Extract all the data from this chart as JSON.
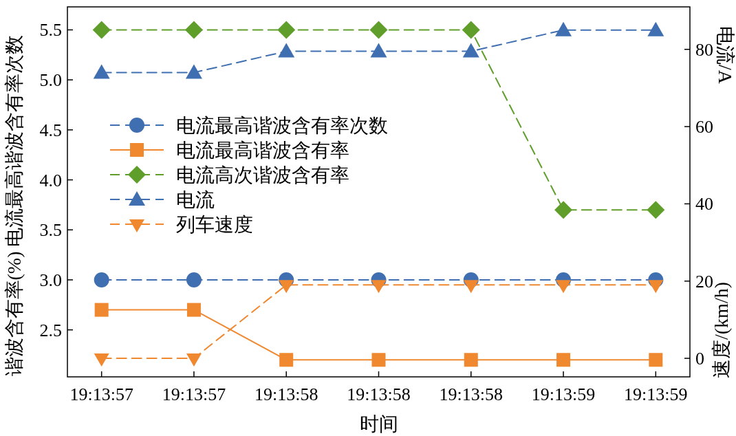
{
  "chart_data": {
    "type": "line",
    "xlabel": "时间",
    "ylabel": "谐波含有率(%) 电流最高谐波含有率次数",
    "y2label": "电流/A",
    "annotations": [
      "速度/(km/h)"
    ],
    "categories": [
      "19:13:57",
      "19:13:57",
      "19:13:58",
      "19:13:58",
      "19:13:58",
      "19:13:59",
      "19:13:59"
    ],
    "series": [
      {
        "name": "电流最高谐波含有率次数",
        "color": "#3f6fb0",
        "marker": "circle",
        "line_style": "dashed",
        "values": [
          3.0,
          3.0,
          3.0,
          3.0,
          3.0,
          3.0,
          3.0
        ]
      },
      {
        "name": "电流最高谐波含有率",
        "color": "#f0882f",
        "marker": "square",
        "line_style": "solid",
        "values": [
          2.7,
          2.7,
          2.2,
          2.2,
          2.2,
          2.2,
          2.2
        ]
      },
      {
        "name": "电流高次谐波含有率",
        "color": "#5f9e2a",
        "marker": "diamond",
        "line_style": "dashed",
        "values": [
          5.5,
          5.5,
          5.5,
          5.5,
          5.5,
          3.7,
          3.7
        ]
      },
      {
        "name": "电流",
        "color": "#3f6fb0",
        "marker": "triangle",
        "line_style": "dashed",
        "axis": "y2",
        "values": [
          74,
          74,
          79.5,
          79.5,
          79.5,
          85,
          85
        ]
      },
      {
        "name": "列车速度",
        "color": "#f0882f",
        "marker": "triangle-down",
        "line_style": "dashed",
        "axis": "y2",
        "values": [
          0,
          0,
          19,
          19,
          19,
          19,
          19
        ]
      }
    ],
    "ylim": [
      2.03,
      5.73
    ],
    "yticks": [
      2.5,
      {
        "value": 3,
        "label": "3.0"
      },
      3.5,
      {
        "value": 4,
        "label": "4.0"
      },
      4.5,
      {
        "value": 5,
        "label": "5.0"
      },
      5.5
    ],
    "y2lim": [
      -4.8,
      91
    ],
    "y2ticks": [
      0,
      20,
      40,
      60,
      80
    ],
    "legend": "left",
    "grid": false
  }
}
